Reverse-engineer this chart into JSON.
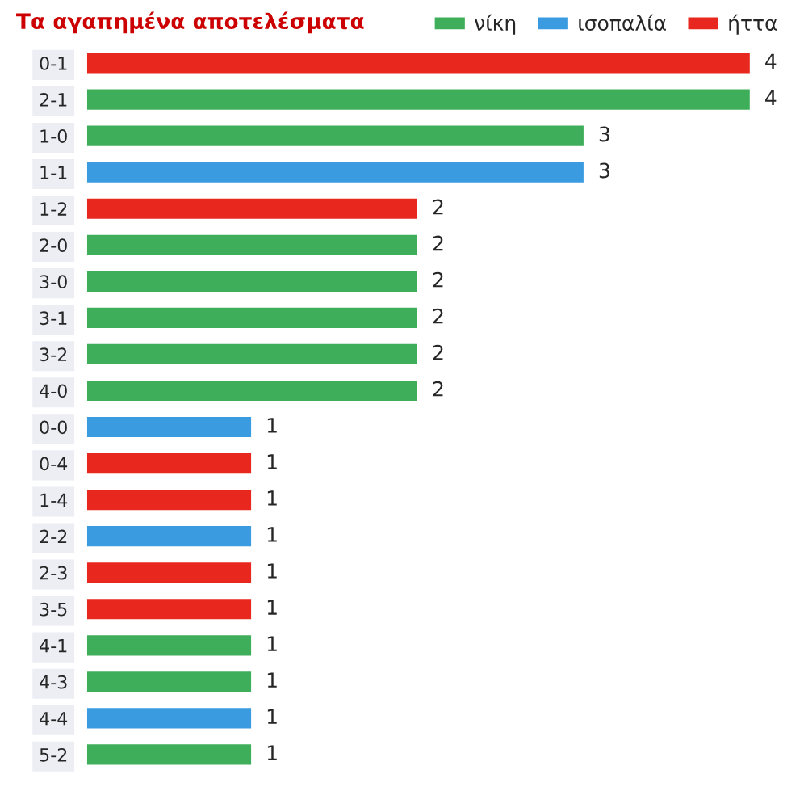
{
  "chart_data": {
    "type": "bar",
    "orientation": "horizontal",
    "title": "Τα αγαπημένα αποτελέσματα",
    "categories": [
      "0-1",
      "2-1",
      "1-0",
      "1-1",
      "1-2",
      "2-0",
      "3-0",
      "3-1",
      "3-2",
      "4-0",
      "0-0",
      "0-4",
      "1-4",
      "2-2",
      "2-3",
      "3-5",
      "4-1",
      "4-3",
      "4-4",
      "5-2"
    ],
    "series": [
      {
        "name": "νίκη",
        "color": "#3fae5a",
        "values": [
          null,
          4,
          3,
          null,
          null,
          2,
          2,
          2,
          2,
          2,
          null,
          null,
          null,
          null,
          null,
          null,
          1,
          1,
          null,
          1
        ]
      },
      {
        "name": "ισοπαλία",
        "color": "#3a9be0",
        "values": [
          null,
          null,
          null,
          3,
          null,
          null,
          null,
          null,
          null,
          null,
          1,
          null,
          null,
          1,
          null,
          null,
          null,
          null,
          1,
          null
        ]
      },
      {
        "name": "ήττα",
        "color": "#e8281e",
        "values": [
          4,
          null,
          null,
          null,
          2,
          null,
          null,
          null,
          null,
          null,
          null,
          1,
          1,
          null,
          1,
          1,
          null,
          null,
          null,
          null
        ]
      }
    ],
    "data_labels": true,
    "legend": "top right",
    "grid": false
  }
}
